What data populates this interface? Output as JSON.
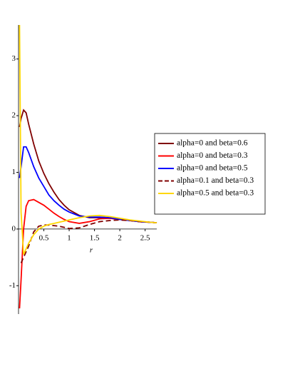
{
  "chart_data": {
    "type": "line",
    "x_label": "r",
    "x": [
      0.02,
      0.05,
      0.1,
      0.15,
      0.2,
      0.3,
      0.4,
      0.5,
      0.6,
      0.7,
      0.8,
      0.9,
      1.0,
      1.2,
      1.4,
      1.6,
      1.8,
      2.0,
      2.2,
      2.4,
      2.6,
      2.73
    ],
    "series": [
      {
        "name": "alpha=0 and beta=0.6",
        "color": "#800000",
        "dash": false,
        "values": [
          1.8,
          1.95,
          2.1,
          2.05,
          1.85,
          1.5,
          1.2,
          0.98,
          0.8,
          0.65,
          0.52,
          0.42,
          0.34,
          0.24,
          0.2,
          0.2,
          0.19,
          0.17,
          0.15,
          0.13,
          0.12,
          0.11
        ]
      },
      {
        "name": "alpha=0 and beta=0.3",
        "color": "#ff0000",
        "dash": false,
        "values": [
          -1.4,
          -0.9,
          0.0,
          0.4,
          0.5,
          0.52,
          0.47,
          0.42,
          0.35,
          0.28,
          0.22,
          0.17,
          0.13,
          0.1,
          0.13,
          0.18,
          0.19,
          0.17,
          0.15,
          0.13,
          0.12,
          0.11
        ]
      },
      {
        "name": "alpha=0 and beta=0.5",
        "color": "#0000ff",
        "dash": false,
        "values": [
          0.9,
          1.1,
          1.45,
          1.45,
          1.35,
          1.1,
          0.9,
          0.75,
          0.6,
          0.5,
          0.42,
          0.35,
          0.3,
          0.23,
          0.21,
          0.21,
          0.2,
          0.17,
          0.15,
          0.13,
          0.12,
          0.11
        ]
      },
      {
        "name": "alpha=0.1 and beta=0.3",
        "color": "#800000",
        "dash": true,
        "values": [
          null,
          -0.6,
          -0.5,
          -0.4,
          -0.3,
          -0.05,
          0.05,
          0.07,
          0.07,
          0.06,
          0.05,
          0.03,
          0.01,
          0.02,
          0.08,
          0.13,
          0.15,
          0.16,
          0.15,
          0.13,
          0.12,
          0.11
        ]
      },
      {
        "name": "alpha=0.5 and beta=0.3",
        "color": "#ffd700",
        "dash": false,
        "values": [
          3.6,
          0.3,
          -0.45,
          -0.35,
          -0.25,
          -0.1,
          0.0,
          0.05,
          0.08,
          0.1,
          0.12,
          0.14,
          0.16,
          0.2,
          0.23,
          0.24,
          0.22,
          0.19,
          0.16,
          0.14,
          0.12,
          0.11
        ]
      }
    ],
    "xlim": [
      0,
      2.73
    ],
    "ylim": [
      -1.5,
      3.6
    ],
    "xticks": [
      0.5,
      1,
      1.5,
      2,
      2.5
    ],
    "yticks": [
      -1,
      0,
      1,
      2,
      3
    ],
    "grid": false,
    "legend_position": "right"
  }
}
